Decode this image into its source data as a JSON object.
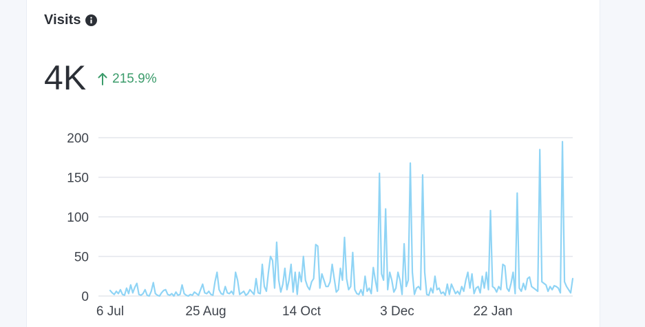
{
  "header": {
    "title": "Visits",
    "info_icon": "info-icon"
  },
  "kpi": {
    "value": "4K",
    "delta": "215.9%",
    "delta_direction": "up",
    "delta_color": "#3a9b6a"
  },
  "colors": {
    "line": "#8fd4f5",
    "grid": "#e3e6ec",
    "axis_text": "#3f444c"
  },
  "chart_data": {
    "type": "line",
    "title": "",
    "xlabel": "",
    "ylabel": "",
    "ylim": [
      0,
      200
    ],
    "yticks": [
      0,
      50,
      100,
      150,
      200
    ],
    "xticks": [
      "6 Jul",
      "25 Aug",
      "14 Oct",
      "3 Dec",
      "22 Jan"
    ],
    "x_start": "6 Jul",
    "x_end": "6 Mar",
    "grid": true,
    "series": [
      {
        "values": [
          7,
          4,
          2,
          6,
          3,
          8,
          2,
          1,
          10,
          3,
          14,
          4,
          11,
          16,
          2,
          1,
          3,
          8,
          1,
          0,
          6,
          17,
          3,
          1,
          0,
          4,
          7,
          8,
          2,
          1,
          3,
          0,
          5,
          1,
          2,
          14,
          3,
          1,
          0,
          2,
          1,
          5,
          3,
          1,
          8,
          15,
          4,
          3,
          6,
          2,
          1,
          18,
          30,
          8,
          3,
          2,
          12,
          4,
          3,
          6,
          2,
          30,
          20,
          2,
          4,
          6,
          1,
          3,
          8,
          5,
          2,
          22,
          4,
          3,
          40,
          12,
          6,
          30,
          50,
          45,
          10,
          68,
          20,
          5,
          15,
          35,
          8,
          20,
          40,
          5,
          30,
          2,
          30,
          18,
          50,
          20,
          12,
          8,
          18,
          22,
          65,
          63,
          10,
          28,
          20,
          12,
          12,
          18,
          40,
          22,
          5,
          8,
          35,
          20,
          74,
          22,
          8,
          12,
          55,
          8,
          3,
          2,
          8,
          1,
          25,
          6,
          10,
          3,
          36,
          20,
          6,
          155,
          28,
          20,
          110,
          8,
          30,
          20,
          5,
          10,
          30,
          20,
          2,
          66,
          12,
          20,
          168,
          30,
          2,
          10,
          12,
          8,
          153,
          30,
          2,
          1,
          10,
          4,
          25,
          8,
          10,
          3,
          5,
          1,
          15,
          2,
          15,
          9,
          3,
          6,
          2,
          12,
          6,
          20,
          30,
          10,
          28,
          3,
          10,
          12,
          4,
          25,
          10,
          30,
          8,
          108,
          12,
          10,
          5,
          12,
          8,
          40,
          38,
          10,
          6,
          16,
          30,
          3,
          130,
          10,
          6,
          16,
          8,
          22,
          24,
          12,
          10,
          8,
          6,
          185,
          18,
          16,
          14,
          6,
          12,
          8,
          13,
          12,
          10,
          4,
          195,
          18,
          12,
          8,
          4,
          22
        ]
      }
    ]
  }
}
